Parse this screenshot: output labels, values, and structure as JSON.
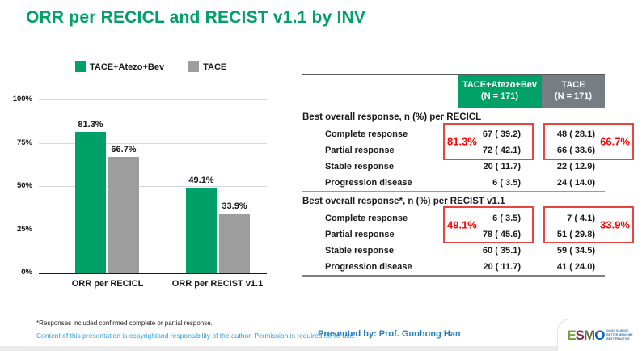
{
  "slide": {
    "title": "ORR per RECICL and RECIST v1.1 by INV"
  },
  "chart_data": {
    "type": "bar",
    "categories": [
      "ORR per RECICL",
      "ORR per RECIST v1.1"
    ],
    "series": [
      {
        "name": "TACE+Atezo+Bev",
        "color": "#00A169",
        "values": [
          81.3,
          49.1
        ],
        "labels": [
          "81.3%",
          "49.1%"
        ]
      },
      {
        "name": "TACE",
        "color": "#9D9D9D",
        "values": [
          66.7,
          33.9
        ],
        "labels": [
          "66.7%",
          "33.9%"
        ]
      }
    ],
    "ylim": [
      0,
      100
    ],
    "yticks": [
      "0%",
      "25%",
      "50%",
      "75%",
      "100%"
    ],
    "grid": "horizontal",
    "legend_position": "top"
  },
  "table": {
    "header": {
      "col1_line1": "TACE+Atezo+Bev",
      "col1_line2": "(N = 171)",
      "col2_line1": "TACE",
      "col2_line2": "(N = 171)"
    },
    "sections": [
      {
        "title": "Best overall response, n (%) per RECICL",
        "highlight_col1": "81.3%",
        "highlight_col2": "66.7%",
        "rows": [
          {
            "label": "Complete response",
            "col1": "67 ( 39.2)",
            "col2": "48 ( 28.1)"
          },
          {
            "label": "Partial response",
            "col1": "72 ( 42.1)",
            "col2": "66 ( 38.6)"
          },
          {
            "label": "Stable response",
            "col1": "20 ( 11.7)",
            "col2": "22 ( 12.9)"
          },
          {
            "label": "Progression disease",
            "col1": "6 ( 3.5)",
            "col2": "24 ( 14.0)"
          }
        ]
      },
      {
        "title": "Best overall response*, n (%) per RECIST v1.1",
        "highlight_col1": "49.1%",
        "highlight_col2": "33.9%",
        "rows": [
          {
            "label": "Complete response",
            "col1": "6 ( 3.5)",
            "col2": "7 ( 4.1)"
          },
          {
            "label": "Partial response",
            "col1": "78 ( 45.6)",
            "col2": "51 ( 29.8)"
          },
          {
            "label": "Stable response",
            "col1": "60 ( 35.1)",
            "col2": "59 ( 34.5)"
          },
          {
            "label": "Progression disease",
            "col1": "20 ( 11.7)",
            "col2": "41 ( 24.0)"
          }
        ]
      }
    ]
  },
  "footer": {
    "footnote": "*Responses included confirmed complete or partial response.",
    "copyright": "Content of this presentation is copyrightand responsibility of the author. Permission is required for re-use.",
    "presented_by": "Presented by: Prof. Guohong Han"
  },
  "logo": {
    "letters": [
      {
        "char": "E",
        "color": "#76A23F"
      },
      {
        "char": "S",
        "color": "#8D2A4D"
      },
      {
        "char": "M",
        "color": "#6A7046"
      },
      {
        "char": "O",
        "color": "#0C63AF"
      }
    ],
    "tagline": [
      "GOOD SCIENCE",
      "BETTER MEDICINE",
      "BEST PRACTICE"
    ]
  },
  "colors": {
    "title_green": "#00A066",
    "bar_green": "#00A169",
    "bar_gray": "#9D9D9D",
    "header_green": "#00A169",
    "header_gray": "#767E83",
    "highlight_red": "#FF0000"
  }
}
